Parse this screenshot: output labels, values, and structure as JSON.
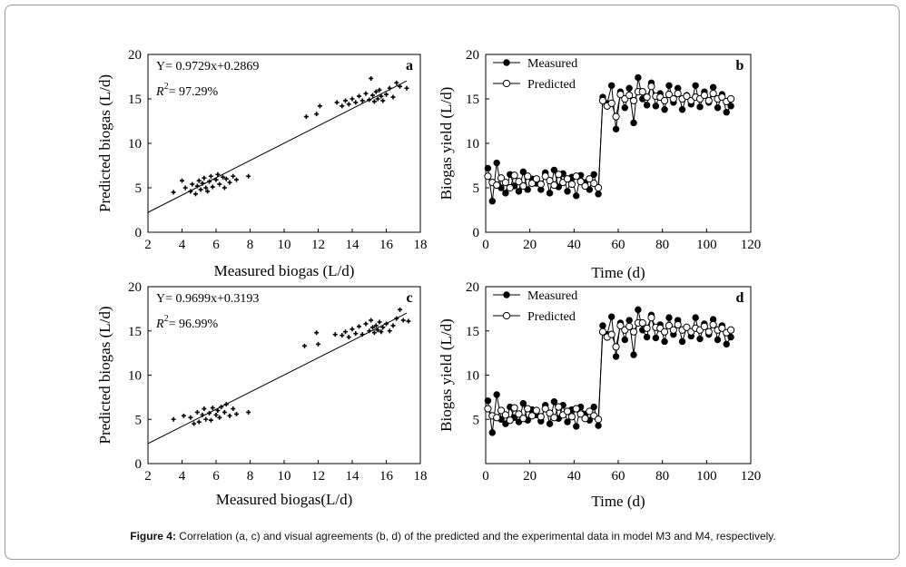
{
  "caption": {
    "label": "Figure 4:",
    "text": " Correlation (a, c) and visual agreements (b, d) of the predicted and the experimental data in model M3 and M4, respectively."
  },
  "chart_data": [
    {
      "id": "a",
      "type": "scatter",
      "panel_label": "a",
      "xlabel": "Measured biogas (L/d)",
      "ylabel": "Predicted biogas (L/d)",
      "xlim": [
        2,
        18
      ],
      "ylim": [
        0,
        20
      ],
      "xticks": [
        2,
        4,
        6,
        8,
        10,
        12,
        14,
        16,
        18
      ],
      "yticks": [
        0,
        5,
        10,
        15,
        20
      ],
      "equation": "Y= 0.9729x+0.2869",
      "r2_prefix": "R",
      "r2_sup": "2",
      "r2_value": "= 97.29%",
      "fit": {
        "slope": 0.9729,
        "intercept": 0.2869
      },
      "points": [
        [
          3.5,
          4.5
        ],
        [
          4.0,
          5.8
        ],
        [
          4.2,
          5.0
        ],
        [
          4.5,
          4.6
        ],
        [
          4.6,
          5.4
        ],
        [
          4.8,
          4.3
        ],
        [
          4.9,
          5.2
        ],
        [
          5.0,
          5.8
        ],
        [
          5.1,
          4.8
        ],
        [
          5.2,
          5.5
        ],
        [
          5.3,
          6.1
        ],
        [
          5.4,
          5.0
        ],
        [
          5.5,
          4.6
        ],
        [
          5.6,
          5.7
        ],
        [
          5.7,
          6.3
        ],
        [
          5.8,
          5.1
        ],
        [
          6.0,
          5.9
        ],
        [
          6.1,
          6.5
        ],
        [
          6.2,
          5.4
        ],
        [
          6.4,
          6.2
        ],
        [
          6.5,
          5.0
        ],
        [
          6.6,
          6.0
        ],
        [
          6.8,
          5.6
        ],
        [
          7.0,
          6.3
        ],
        [
          7.2,
          5.9
        ],
        [
          7.9,
          6.3
        ],
        [
          11.3,
          13.0
        ],
        [
          11.9,
          13.3
        ],
        [
          12.1,
          14.2
        ],
        [
          13.1,
          14.6
        ],
        [
          13.4,
          14.2
        ],
        [
          13.6,
          14.8
        ],
        [
          13.8,
          14.4
        ],
        [
          14.0,
          15.0
        ],
        [
          14.2,
          14.6
        ],
        [
          14.4,
          15.3
        ],
        [
          14.6,
          14.8
        ],
        [
          14.8,
          15.6
        ],
        [
          15.0,
          14.9
        ],
        [
          15.1,
          17.3
        ],
        [
          15.2,
          15.4
        ],
        [
          15.3,
          14.7
        ],
        [
          15.4,
          15.8
        ],
        [
          15.5,
          15.0
        ],
        [
          15.6,
          16.0
        ],
        [
          15.7,
          15.3
        ],
        [
          15.8,
          14.8
        ],
        [
          16.0,
          15.5
        ],
        [
          16.2,
          16.2
        ],
        [
          16.4,
          15.2
        ],
        [
          16.6,
          16.8
        ],
        [
          16.8,
          16.4
        ],
        [
          17.2,
          16.2
        ]
      ]
    },
    {
      "id": "b",
      "type": "line",
      "panel_label": "b",
      "xlabel": "Time (d)",
      "ylabel": "Biogas yield (L/d)",
      "xlim": [
        0,
        120
      ],
      "ylim": [
        0,
        20
      ],
      "xticks": [
        0,
        20,
        40,
        60,
        80,
        100,
        120
      ],
      "yticks": [
        0,
        5,
        10,
        15,
        20
      ],
      "legend": [
        {
          "name": "Measured",
          "marker": "filled"
        },
        {
          "name": "Predicted",
          "marker": "open"
        }
      ],
      "x": [
        1,
        3,
        5,
        7,
        9,
        11,
        13,
        15,
        17,
        19,
        21,
        23,
        25,
        27,
        29,
        31,
        33,
        35,
        37,
        39,
        41,
        43,
        45,
        47,
        49,
        51,
        53,
        55,
        57,
        59,
        61,
        63,
        65,
        67,
        69,
        71,
        73,
        75,
        77,
        79,
        81,
        83,
        85,
        87,
        89,
        91,
        93,
        95,
        97,
        99,
        101,
        103,
        105,
        107,
        109,
        111
      ],
      "series": [
        {
          "name": "Measured",
          "values": [
            7.2,
            3.5,
            7.8,
            5.0,
            4.4,
            6.5,
            5.2,
            4.6,
            6.8,
            4.8,
            6.0,
            5.5,
            4.8,
            6.7,
            4.4,
            7.0,
            5.1,
            6.6,
            4.6,
            6.2,
            4.1,
            6.4,
            5.6,
            4.8,
            6.5,
            4.3,
            15.2,
            14.5,
            16.5,
            11.6,
            15.8,
            14.0,
            16.2,
            12.3,
            17.4,
            15.0,
            14.3,
            16.8,
            14.2,
            15.6,
            13.8,
            16.5,
            14.6,
            16.2,
            13.8,
            15.4,
            14.4,
            16.5,
            14.1,
            15.8,
            14.6,
            16.3,
            14.0,
            15.5,
            13.5,
            14.2
          ]
        },
        {
          "name": "Predicted",
          "values": [
            6.3,
            5.6,
            5.3,
            6.1,
            5.6,
            5.0,
            6.4,
            5.7,
            5.2,
            6.3,
            5.5,
            6.0,
            5.4,
            6.3,
            5.8,
            5.3,
            6.5,
            5.6,
            6.0,
            5.4,
            6.3,
            5.7,
            5.2,
            6.0,
            5.5,
            5.0,
            14.8,
            14.2,
            14.5,
            13.0,
            15.5,
            15.0,
            15.4,
            14.8,
            15.8,
            15.8,
            15.2,
            16.4,
            15.3,
            15.2,
            14.8,
            15.5,
            15.0,
            15.6,
            15.0,
            15.3,
            14.8,
            15.2,
            15.0,
            15.4,
            14.8,
            15.6,
            15.0,
            15.2,
            14.7,
            15.0
          ]
        }
      ]
    },
    {
      "id": "c",
      "type": "scatter",
      "panel_label": "c",
      "xlabel": "Measured biogas(L/d)",
      "ylabel": "Predicted biogas (L/d)",
      "xlim": [
        2,
        18
      ],
      "ylim": [
        0,
        20
      ],
      "xticks": [
        2,
        4,
        6,
        8,
        10,
        12,
        14,
        16,
        18
      ],
      "yticks": [
        0,
        5,
        10,
        15,
        20
      ],
      "equation": "Y= 0.9699x+0.3193",
      "r2_prefix": "R",
      "r2_sup": "2",
      "r2_value": "= 96.99%",
      "fit": {
        "slope": 0.9699,
        "intercept": 0.3193
      },
      "points": [
        [
          3.5,
          5.0
        ],
        [
          4.1,
          5.4
        ],
        [
          4.5,
          5.2
        ],
        [
          4.7,
          4.5
        ],
        [
          4.9,
          5.8
        ],
        [
          5.0,
          4.7
        ],
        [
          5.2,
          5.5
        ],
        [
          5.3,
          6.2
        ],
        [
          5.4,
          5.0
        ],
        [
          5.6,
          5.7
        ],
        [
          5.7,
          4.9
        ],
        [
          5.8,
          6.3
        ],
        [
          6.0,
          5.5
        ],
        [
          6.1,
          6.0
        ],
        [
          6.2,
          5.2
        ],
        [
          6.3,
          6.4
        ],
        [
          6.5,
          5.8
        ],
        [
          6.6,
          6.7
        ],
        [
          6.8,
          5.4
        ],
        [
          7.0,
          6.2
        ],
        [
          7.2,
          5.6
        ],
        [
          7.9,
          5.8
        ],
        [
          11.2,
          13.3
        ],
        [
          11.9,
          14.8
        ],
        [
          12.0,
          13.5
        ],
        [
          13.0,
          14.6
        ],
        [
          13.4,
          14.5
        ],
        [
          13.6,
          14.9
        ],
        [
          13.8,
          14.3
        ],
        [
          14.0,
          15.2
        ],
        [
          14.2,
          14.7
        ],
        [
          14.4,
          15.5
        ],
        [
          14.6,
          14.6
        ],
        [
          14.8,
          15.8
        ],
        [
          15.0,
          15.0
        ],
        [
          15.1,
          16.2
        ],
        [
          15.2,
          15.4
        ],
        [
          15.3,
          14.8
        ],
        [
          15.4,
          15.6
        ],
        [
          15.5,
          15.1
        ],
        [
          15.6,
          16.0
        ],
        [
          15.7,
          14.9
        ],
        [
          15.8,
          15.4
        ],
        [
          16.0,
          15.8
        ],
        [
          16.2,
          15.0
        ],
        [
          16.4,
          15.6
        ],
        [
          16.6,
          16.4
        ],
        [
          16.8,
          17.4
        ],
        [
          17.0,
          16.2
        ],
        [
          17.3,
          16.1
        ]
      ]
    },
    {
      "id": "d",
      "type": "line",
      "panel_label": "d",
      "xlabel": "Time (d)",
      "ylabel": "Biogas yield (L/d)",
      "xlim": [
        0,
        120
      ],
      "ylim": [
        0,
        20
      ],
      "xticks": [
        0,
        20,
        40,
        60,
        80,
        100,
        120
      ],
      "yticks": [
        5,
        10,
        15,
        20
      ],
      "legend": [
        {
          "name": "Measured",
          "marker": "filled"
        },
        {
          "name": "Predicted",
          "marker": "open"
        }
      ],
      "x": [
        1,
        3,
        5,
        7,
        9,
        11,
        13,
        15,
        17,
        19,
        21,
        23,
        25,
        27,
        29,
        31,
        33,
        35,
        37,
        39,
        41,
        43,
        45,
        47,
        49,
        51,
        53,
        55,
        57,
        59,
        61,
        63,
        65,
        67,
        69,
        71,
        73,
        75,
        77,
        79,
        81,
        83,
        85,
        87,
        89,
        91,
        93,
        95,
        97,
        99,
        101,
        103,
        105,
        107,
        109,
        111
      ],
      "series": [
        {
          "name": "Measured",
          "values": [
            7.1,
            3.5,
            7.8,
            5.0,
            4.5,
            6.4,
            5.2,
            4.7,
            6.8,
            4.9,
            6.1,
            5.5,
            4.8,
            6.6,
            4.5,
            7.0,
            5.1,
            6.6,
            4.7,
            6.1,
            4.2,
            6.4,
            5.6,
            4.9,
            6.4,
            4.3,
            15.6,
            14.6,
            16.6,
            12.1,
            15.9,
            14.0,
            16.2,
            12.3,
            17.4,
            15.1,
            14.3,
            16.8,
            14.2,
            15.7,
            13.8,
            16.5,
            14.6,
            16.2,
            13.8,
            15.4,
            14.4,
            16.5,
            14.1,
            15.8,
            14.6,
            16.3,
            14.0,
            15.6,
            13.5,
            14.3
          ]
        },
        {
          "name": "Predicted",
          "values": [
            6.2,
            5.4,
            5.2,
            6.0,
            5.5,
            4.9,
            6.3,
            5.6,
            5.1,
            6.2,
            5.4,
            6.0,
            5.3,
            6.2,
            5.7,
            5.2,
            6.4,
            5.5,
            5.9,
            5.3,
            6.2,
            5.6,
            5.1,
            5.9,
            5.4,
            5.0,
            14.9,
            14.3,
            14.6,
            13.2,
            15.6,
            15.1,
            15.5,
            14.9,
            15.9,
            15.9,
            15.3,
            16.5,
            15.4,
            15.3,
            14.9,
            15.6,
            15.1,
            15.7,
            15.1,
            15.4,
            14.9,
            15.3,
            15.1,
            15.5,
            14.9,
            15.7,
            15.1,
            15.3,
            14.8,
            15.1
          ]
        }
      ]
    }
  ]
}
